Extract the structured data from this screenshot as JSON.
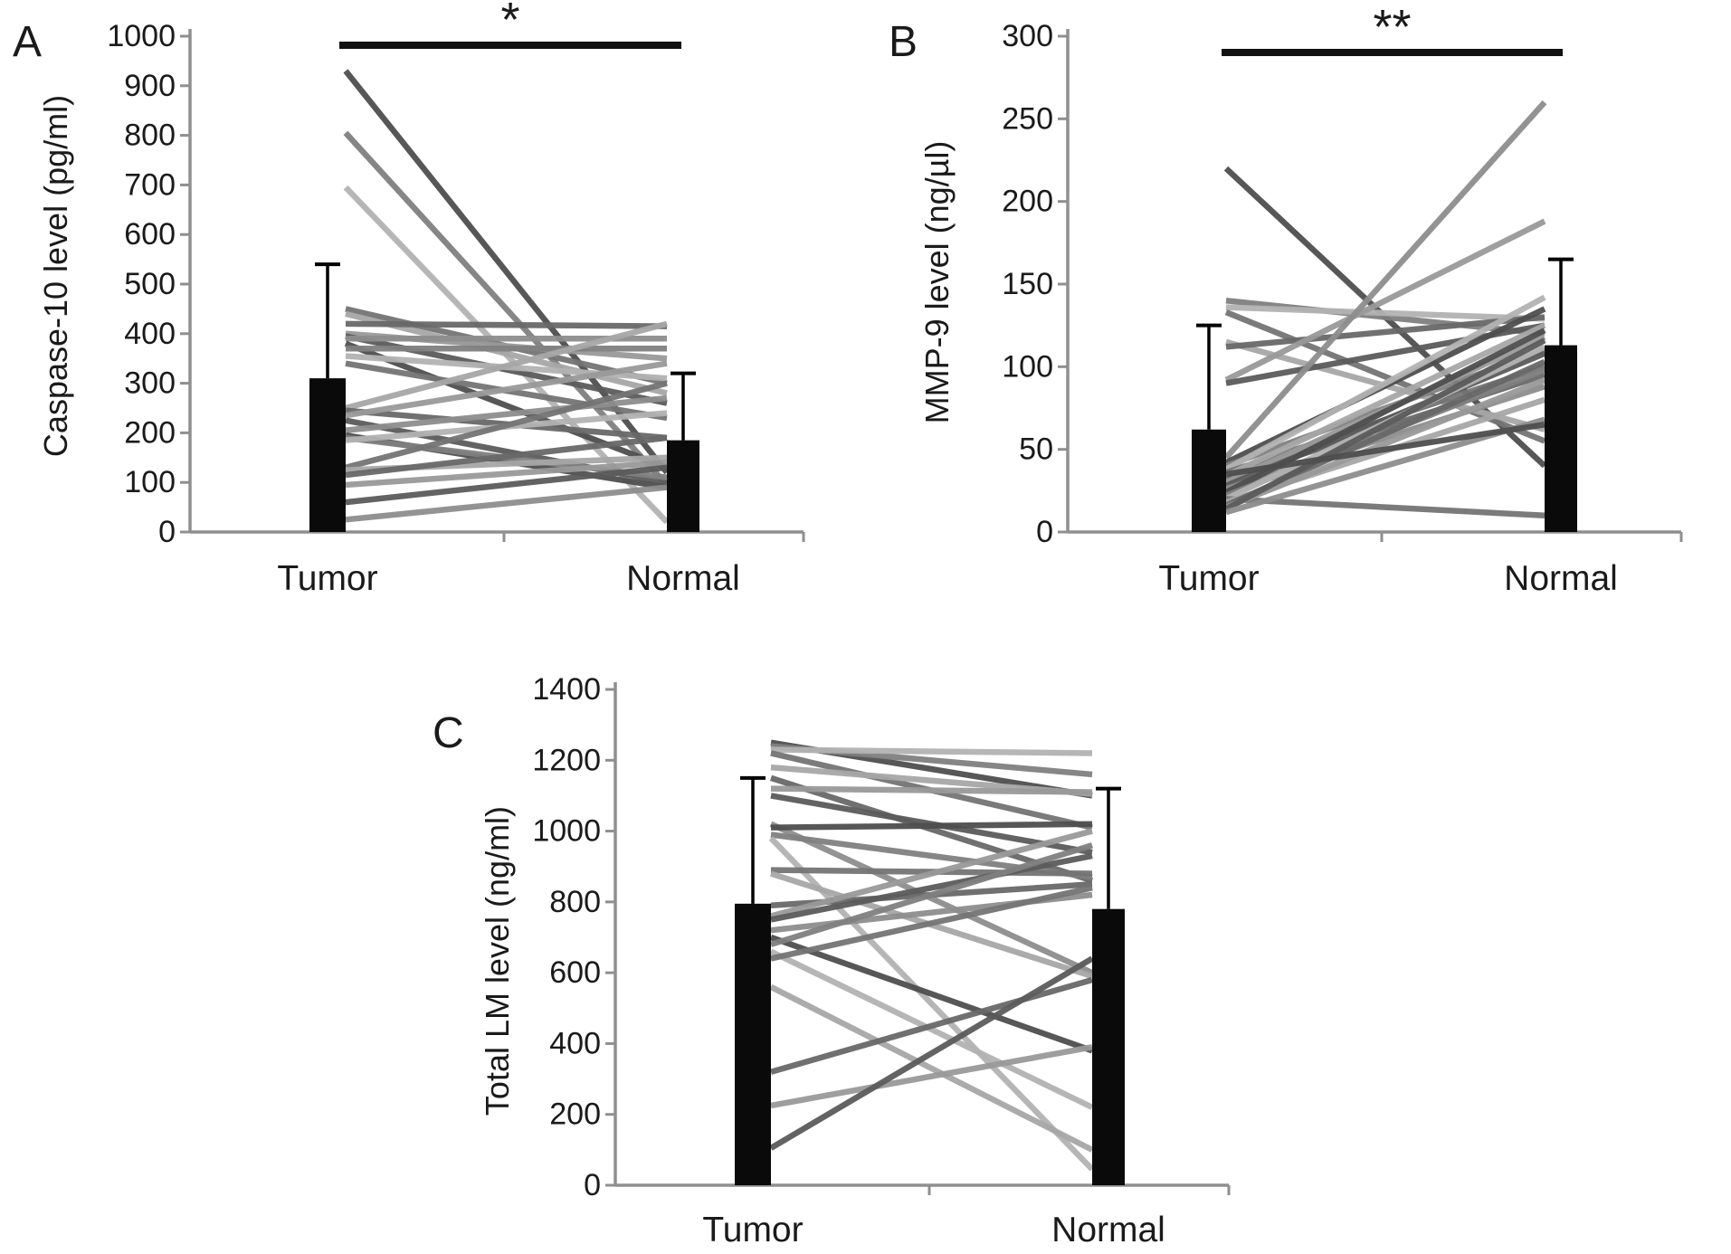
{
  "figure": {
    "panel_letters": [
      "A",
      "B",
      "C"
    ],
    "category_labels": [
      "Tumor",
      "Normal"
    ]
  },
  "colors": {
    "background": "#ffffff",
    "bar_fill": "#0a0a0a",
    "axis": "#8f8f8f",
    "text": "#1a1a1a",
    "significance_line": "#111111",
    "line_palette": [
      "#4e4e4e",
      "#5b5b5b",
      "#686868",
      "#747474",
      "#808080",
      "#8d8d8d",
      "#999999",
      "#a6a6a6",
      "#b2b2b2"
    ]
  },
  "chart_data": [
    {
      "panel": "A",
      "type": "line",
      "subtype": "paired-samples-with-mean-bars",
      "ylabel": "Caspase-10 level (pg/ml)",
      "categories": [
        "Tumor",
        "Normal"
      ],
      "ylim": [
        0,
        1000
      ],
      "ytick_step": 100,
      "ytick_labels": [
        "0",
        "100",
        "200",
        "300",
        "400",
        "500",
        "600",
        "700",
        "800",
        "900",
        "1000"
      ],
      "grid": false,
      "legend": null,
      "significance_label": "*",
      "mean_bars": [
        {
          "category": "Tumor",
          "mean": 310,
          "error_top": 540
        },
        {
          "category": "Normal",
          "mean": 185,
          "error_top": 320
        }
      ],
      "pairs": [
        [
          930,
          120
        ],
        [
          805,
          95
        ],
        [
          695,
          20
        ],
        [
          450,
          300
        ],
        [
          440,
          280
        ],
        [
          420,
          415
        ],
        [
          400,
          350
        ],
        [
          395,
          260
        ],
        [
          390,
          390
        ],
        [
          380,
          130
        ],
        [
          370,
          370
        ],
        [
          355,
          310
        ],
        [
          340,
          230
        ],
        [
          250,
          420
        ],
        [
          245,
          190
        ],
        [
          235,
          340
        ],
        [
          225,
          100
        ],
        [
          205,
          270
        ],
        [
          195,
          90
        ],
        [
          190,
          110
        ],
        [
          185,
          240
        ],
        [
          130,
          300
        ],
        [
          125,
          150
        ],
        [
          115,
          190
        ],
        [
          95,
          140
        ],
        [
          60,
          130
        ],
        [
          25,
          90
        ]
      ]
    },
    {
      "panel": "B",
      "type": "line",
      "subtype": "paired-samples-with-mean-bars",
      "ylabel": "MMP-9 level (ng/µl)",
      "categories": [
        "Tumor",
        "Normal"
      ],
      "ylim": [
        0,
        300
      ],
      "ytick_step": 50,
      "ytick_labels": [
        "0",
        "50",
        "100",
        "150",
        "200",
        "250",
        "300"
      ],
      "grid": false,
      "legend": null,
      "significance_label": "**",
      "mean_bars": [
        {
          "category": "Tumor",
          "mean": 62,
          "error_top": 125
        },
        {
          "category": "Normal",
          "mean": 113,
          "error_top": 165
        }
      ],
      "pairs": [
        [
          220,
          40
        ],
        [
          140,
          120
        ],
        [
          136,
          129
        ],
        [
          133,
          55
        ],
        [
          115,
          62
        ],
        [
          112,
          130
        ],
        [
          92,
          188
        ],
        [
          90,
          125
        ],
        [
          45,
          260
        ],
        [
          42,
          135
        ],
        [
          40,
          110
        ],
        [
          38,
          142
        ],
        [
          36,
          100
        ],
        [
          34,
          125
        ],
        [
          32,
          95
        ],
        [
          30,
          118
        ],
        [
          28,
          108
        ],
        [
          26,
          88
        ],
        [
          24,
          122
        ],
        [
          22,
          98
        ],
        [
          20,
          112
        ],
        [
          20,
          10
        ],
        [
          18,
          80
        ],
        [
          16,
          103
        ],
        [
          15,
          92
        ],
        [
          14,
          116
        ],
        [
          12,
          68
        ],
        [
          35,
          65
        ]
      ]
    },
    {
      "panel": "C",
      "type": "line",
      "subtype": "paired-samples-with-mean-bars",
      "ylabel": "Total LM level (ng/ml)",
      "categories": [
        "Tumor",
        "Normal"
      ],
      "ylim": [
        0,
        1400
      ],
      "ytick_step": 200,
      "ytick_labels": [
        "0",
        "200",
        "400",
        "600",
        "800",
        "1000",
        "1200",
        "1400"
      ],
      "grid": false,
      "legend": null,
      "significance_label": null,
      "mean_bars": [
        {
          "category": "Tumor",
          "mean": 795,
          "error_top": 1150
        },
        {
          "category": "Normal",
          "mean": 780,
          "error_top": 1120
        }
      ],
      "pairs": [
        [
          1250,
          1100
        ],
        [
          1240,
          1160
        ],
        [
          1230,
          1220
        ],
        [
          1220,
          1010
        ],
        [
          1180,
          1105
        ],
        [
          1150,
          860
        ],
        [
          1120,
          1110
        ],
        [
          1100,
          940
        ],
        [
          1020,
          600
        ],
        [
          1010,
          1020
        ],
        [
          990,
          870
        ],
        [
          980,
          45
        ],
        [
          890,
          880
        ],
        [
          880,
          590
        ],
        [
          790,
          850
        ],
        [
          760,
          1000
        ],
        [
          750,
          930
        ],
        [
          720,
          820
        ],
        [
          700,
          380
        ],
        [
          680,
          960
        ],
        [
          660,
          220
        ],
        [
          640,
          840
        ],
        [
          560,
          100
        ],
        [
          320,
          580
        ],
        [
          225,
          390
        ],
        [
          105,
          640
        ]
      ]
    }
  ]
}
